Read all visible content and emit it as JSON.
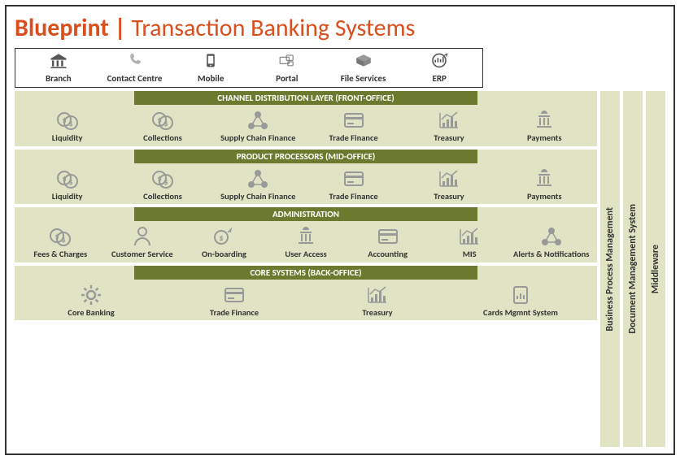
{
  "colors": {
    "title_accent": "#d94f1e",
    "layer_bg": "#e0e4c4",
    "layer_header_bg": "#6b7a2e",
    "layer_header_text": "#ffffff",
    "icon_gray": "#8a8a8a",
    "text": "#333333",
    "border": "#333333"
  },
  "title": {
    "prefix": "Blueprint |",
    "main": " Transaction Banking Systems"
  },
  "channels": [
    {
      "label": "Branch",
      "icon": "bank"
    },
    {
      "label": "Contact Centre",
      "icon": "phone"
    },
    {
      "label": "Mobile",
      "icon": "mobile"
    },
    {
      "label": "Portal",
      "icon": "portal"
    },
    {
      "label": "File Services",
      "icon": "box"
    },
    {
      "label": "ERP",
      "icon": "erp"
    }
  ],
  "layers": [
    {
      "header": "CHANNEL DISTRIBUTION LAYER (FRONT-OFFICE)",
      "items": [
        {
          "label": "Liquidity",
          "icon": "coins"
        },
        {
          "label": "Collections",
          "icon": "coins"
        },
        {
          "label": "Supply Chain Finance",
          "icon": "network"
        },
        {
          "label": "Trade Finance",
          "icon": "card"
        },
        {
          "label": "Treasury",
          "icon": "chart"
        },
        {
          "label": "Payments",
          "icon": "capitol"
        }
      ]
    },
    {
      "header": "PRODUCT PROCESSORS (MID-OFFICE)",
      "items": [
        {
          "label": "Liquidity",
          "icon": "coins"
        },
        {
          "label": "Collections",
          "icon": "coins"
        },
        {
          "label": "Supply Chain Finance",
          "icon": "network"
        },
        {
          "label": "Trade Finance",
          "icon": "card"
        },
        {
          "label": "Treasury",
          "icon": "chart"
        },
        {
          "label": "Payments",
          "icon": "capitol"
        }
      ]
    },
    {
      "header": "ADMINISTRATION",
      "items": [
        {
          "label": "Fees & Charges",
          "icon": "coins"
        },
        {
          "label": "Customer Service",
          "icon": "person"
        },
        {
          "label": "On-boarding",
          "icon": "coin-single"
        },
        {
          "label": "User Access",
          "icon": "capitol"
        },
        {
          "label": "Accounting",
          "icon": "card"
        },
        {
          "label": "MIS",
          "icon": "chart"
        },
        {
          "label": "Alerts & Notifications",
          "icon": "network"
        }
      ]
    },
    {
      "header": "CORE SYSTEMS (BACK-OFFICE)",
      "items": [
        {
          "label": "Core Banking",
          "icon": "gear"
        },
        {
          "label": "Trade Finance",
          "icon": "card"
        },
        {
          "label": "Treasury",
          "icon": "chart"
        },
        {
          "label": "Cards Mgmnt System",
          "icon": "device"
        }
      ]
    }
  ],
  "sidebars": [
    "Business Process Management",
    "Document Management System",
    "Middleware"
  ]
}
